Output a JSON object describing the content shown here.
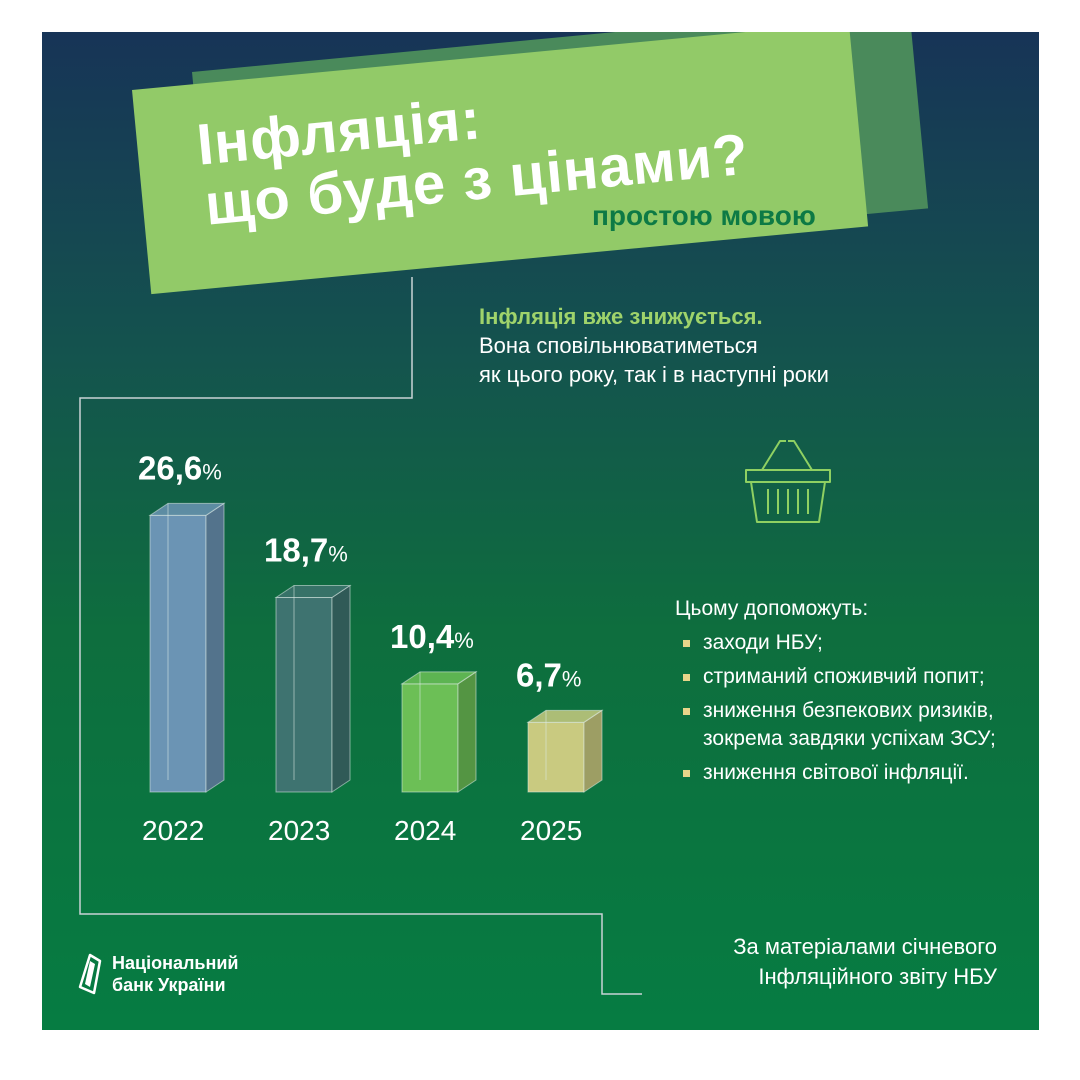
{
  "header": {
    "title_line1": "Інфляція:",
    "title_line2": "що буде з цінами?",
    "subtitle": "простою мовою"
  },
  "lead": {
    "highlight": "Інфляція вже знижується.",
    "line2": "Вона сповільнюватиметься",
    "line3": "як цього року, так і в наступні роки"
  },
  "chart_data": {
    "type": "bar",
    "categories": [
      "2022",
      "2023",
      "2024",
      "2025"
    ],
    "values": [
      26.6,
      18.7,
      10.4,
      6.7
    ],
    "value_labels": [
      "26,6",
      "18,7",
      "10,4",
      "6,7"
    ],
    "unit": "%",
    "colors": [
      "#6b94b4",
      "#3e7370",
      "#6cbf56",
      "#c9ca80"
    ],
    "title": "",
    "xlabel": "",
    "ylabel": ""
  },
  "factors": {
    "title": "Цьому допоможуть:",
    "items": [
      "заходи НБУ;",
      "стриманий споживчий попит;",
      "зниження безпекових ризиків, зокрема завдяки успіхам ЗСУ;",
      "зниження світової інфляції."
    ]
  },
  "source": {
    "line1": "За матеріалами січневого",
    "line2": "Інфляційного звіту НБУ"
  },
  "logo": {
    "line1": "Національний",
    "line2": "банк України"
  },
  "icons": {
    "basket": "shopping-basket-icon",
    "logo": "nbu-logo-icon"
  }
}
